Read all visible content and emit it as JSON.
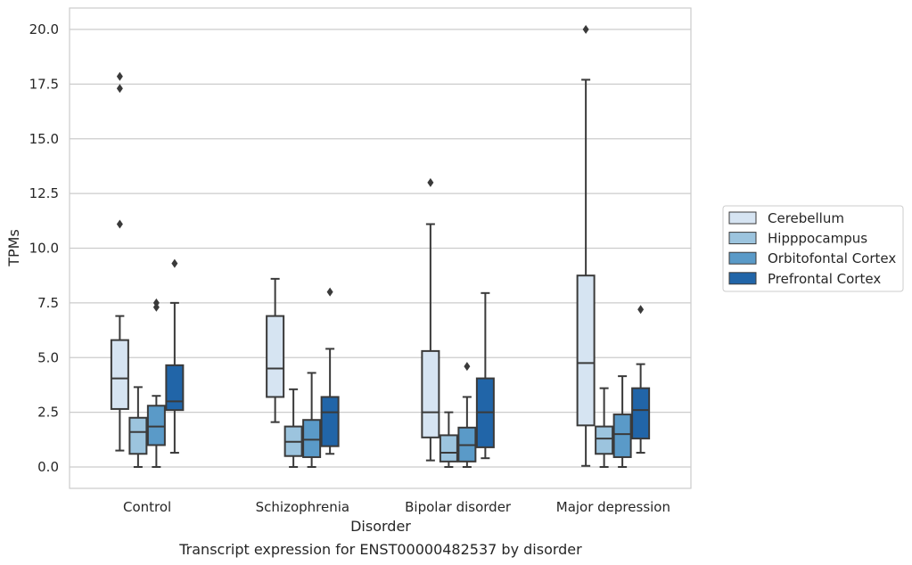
{
  "chart_data": {
    "type": "box",
    "xlabel": "Disorder",
    "ylabel": "TPMs",
    "caption": "Transcript expression for ENST00000482537 by disorder",
    "categories": [
      "Control",
      "Schizophrenia",
      "Bipolar disorder",
      "Major depression"
    ],
    "ylim": [
      -1.0,
      21.0
    ],
    "yticks": [
      "0.0",
      "2.5",
      "5.0",
      "7.5",
      "10.0",
      "12.5",
      "15.0",
      "17.5",
      "20.0"
    ],
    "grid": "horizontal",
    "legend_position": "right",
    "series": [
      {
        "name": "Cerebellum",
        "color": "#d6e4f2",
        "boxes": [
          {
            "whisker_low": 0.75,
            "q1": 2.65,
            "median": 4.05,
            "q3": 5.8,
            "whisker_high": 6.9,
            "outliers": [
              11.1,
              17.3,
              17.85
            ]
          },
          {
            "whisker_low": 2.05,
            "q1": 3.2,
            "median": 4.5,
            "q3": 6.9,
            "whisker_high": 8.6,
            "outliers": []
          },
          {
            "whisker_low": 0.3,
            "q1": 1.35,
            "median": 2.5,
            "q3": 5.3,
            "whisker_high": 11.1,
            "outliers": [
              13.0
            ]
          },
          {
            "whisker_low": 0.05,
            "q1": 1.9,
            "median": 4.75,
            "q3": 8.75,
            "whisker_high": 17.7,
            "outliers": [
              20.0
            ]
          }
        ]
      },
      {
        "name": "Hipppocampus",
        "color": "#9cc4de",
        "boxes": [
          {
            "whisker_low": 0.0,
            "q1": 0.6,
            "median": 1.6,
            "q3": 2.25,
            "whisker_high": 3.65,
            "outliers": []
          },
          {
            "whisker_low": 0.0,
            "q1": 0.5,
            "median": 1.15,
            "q3": 1.85,
            "whisker_high": 3.55,
            "outliers": []
          },
          {
            "whisker_low": 0.0,
            "q1": 0.25,
            "median": 0.65,
            "q3": 1.45,
            "whisker_high": 2.5,
            "outliers": []
          },
          {
            "whisker_low": 0.0,
            "q1": 0.6,
            "median": 1.3,
            "q3": 1.85,
            "whisker_high": 3.6,
            "outliers": []
          }
        ]
      },
      {
        "name": "Orbitofontal Cortex",
        "color": "#5a9ac8",
        "boxes": [
          {
            "whisker_low": 0.0,
            "q1": 1.0,
            "median": 1.85,
            "q3": 2.8,
            "whisker_high": 3.25,
            "outliers": [
              7.3,
              7.5
            ]
          },
          {
            "whisker_low": 0.0,
            "q1": 0.45,
            "median": 1.25,
            "q3": 2.15,
            "whisker_high": 4.3,
            "outliers": []
          },
          {
            "whisker_low": 0.0,
            "q1": 0.25,
            "median": 1.0,
            "q3": 1.8,
            "whisker_high": 3.2,
            "outliers": [
              4.6
            ]
          },
          {
            "whisker_low": 0.0,
            "q1": 0.45,
            "median": 1.5,
            "q3": 2.4,
            "whisker_high": 4.15,
            "outliers": []
          }
        ]
      },
      {
        "name": "Prefrontal Cortex",
        "color": "#2165a8",
        "boxes": [
          {
            "whisker_low": 0.65,
            "q1": 2.6,
            "median": 3.0,
            "q3": 4.65,
            "whisker_high": 7.5,
            "outliers": [
              9.3
            ]
          },
          {
            "whisker_low": 0.6,
            "q1": 0.95,
            "median": 2.5,
            "q3": 3.2,
            "whisker_high": 5.4,
            "outliers": [
              8.0
            ]
          },
          {
            "whisker_low": 0.4,
            "q1": 0.9,
            "median": 2.5,
            "q3": 4.05,
            "whisker_high": 7.95,
            "outliers": []
          },
          {
            "whisker_low": 0.65,
            "q1": 1.3,
            "median": 2.6,
            "q3": 3.6,
            "whisker_high": 4.7,
            "outliers": [
              7.2
            ]
          }
        ]
      }
    ]
  }
}
